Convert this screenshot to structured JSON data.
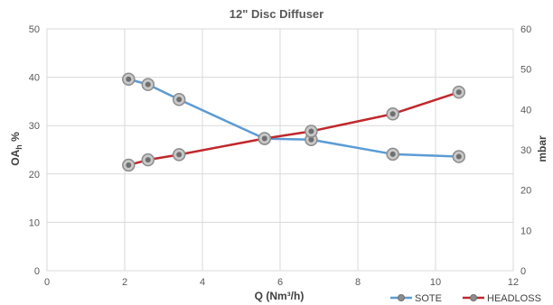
{
  "chart_data": {
    "type": "line",
    "title": "12\" Disc Diffuser",
    "xlabel": "Q (Nm³/h)",
    "ylabel_main": "OA",
    "ylabel_sub": "h",
    "ylabel_suffix": " %",
    "y2label": "mbar",
    "xlim": [
      0,
      12
    ],
    "ylim": [
      0,
      50
    ],
    "y2lim": [
      0,
      60
    ],
    "xticks": [
      "0",
      "2",
      "4",
      "6",
      "8",
      "10",
      "12"
    ],
    "yticks": [
      "0",
      "10",
      "20",
      "30",
      "40",
      "50"
    ],
    "y2ticks": [
      "0",
      "10",
      "20",
      "30",
      "40",
      "50",
      "60"
    ],
    "grid": true,
    "legend_position": "bottom-right",
    "series": [
      {
        "name": "SOTE",
        "axis": "left",
        "color": "#5b9bd5",
        "x": [
          2.1,
          2.6,
          3.4,
          5.6,
          6.8,
          8.9,
          10.6
        ],
        "y": [
          39.6,
          38.5,
          35.4,
          27.3,
          27.1,
          24.1,
          23.6
        ]
      },
      {
        "name": "HEADLOSS",
        "axis": "right",
        "color": "#c0282d",
        "x": [
          2.1,
          2.6,
          3.4,
          5.6,
          6.8,
          8.9,
          10.6
        ],
        "y": [
          26.2,
          27.5,
          28.8,
          32.8,
          34.6,
          38.9,
          44.3
        ]
      }
    ]
  }
}
